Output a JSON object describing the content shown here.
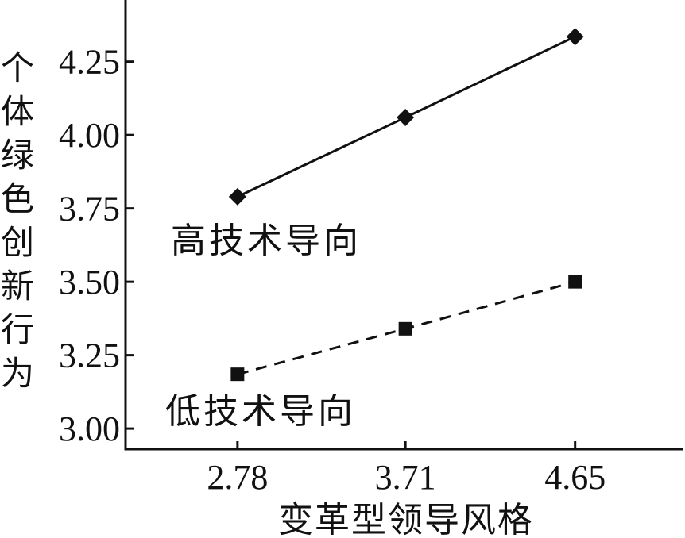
{
  "chart_data": {
    "type": "line",
    "x": [
      2.78,
      3.71,
      4.65
    ],
    "x_ticks": [
      "2.78",
      "3.71",
      "4.65"
    ],
    "y_ticks": [
      "3.00",
      "3.25",
      "3.50",
      "3.75",
      "4.00",
      "4.25"
    ],
    "xlim": [
      2.16,
      5.25
    ],
    "ylim": [
      2.93,
      4.46
    ],
    "xlabel": "变革型领导风格",
    "ylabel": "个体绿色创新行为",
    "grid": false,
    "series": [
      {
        "name": "高技术导向",
        "values": [
          3.79,
          4.06,
          4.335
        ],
        "style": "solid",
        "marker": "diamond",
        "color": "#111111"
      },
      {
        "name": "低技术导向",
        "values": [
          3.185,
          3.34,
          3.5
        ],
        "style": "dashed",
        "marker": "square",
        "color": "#111111"
      }
    ]
  }
}
